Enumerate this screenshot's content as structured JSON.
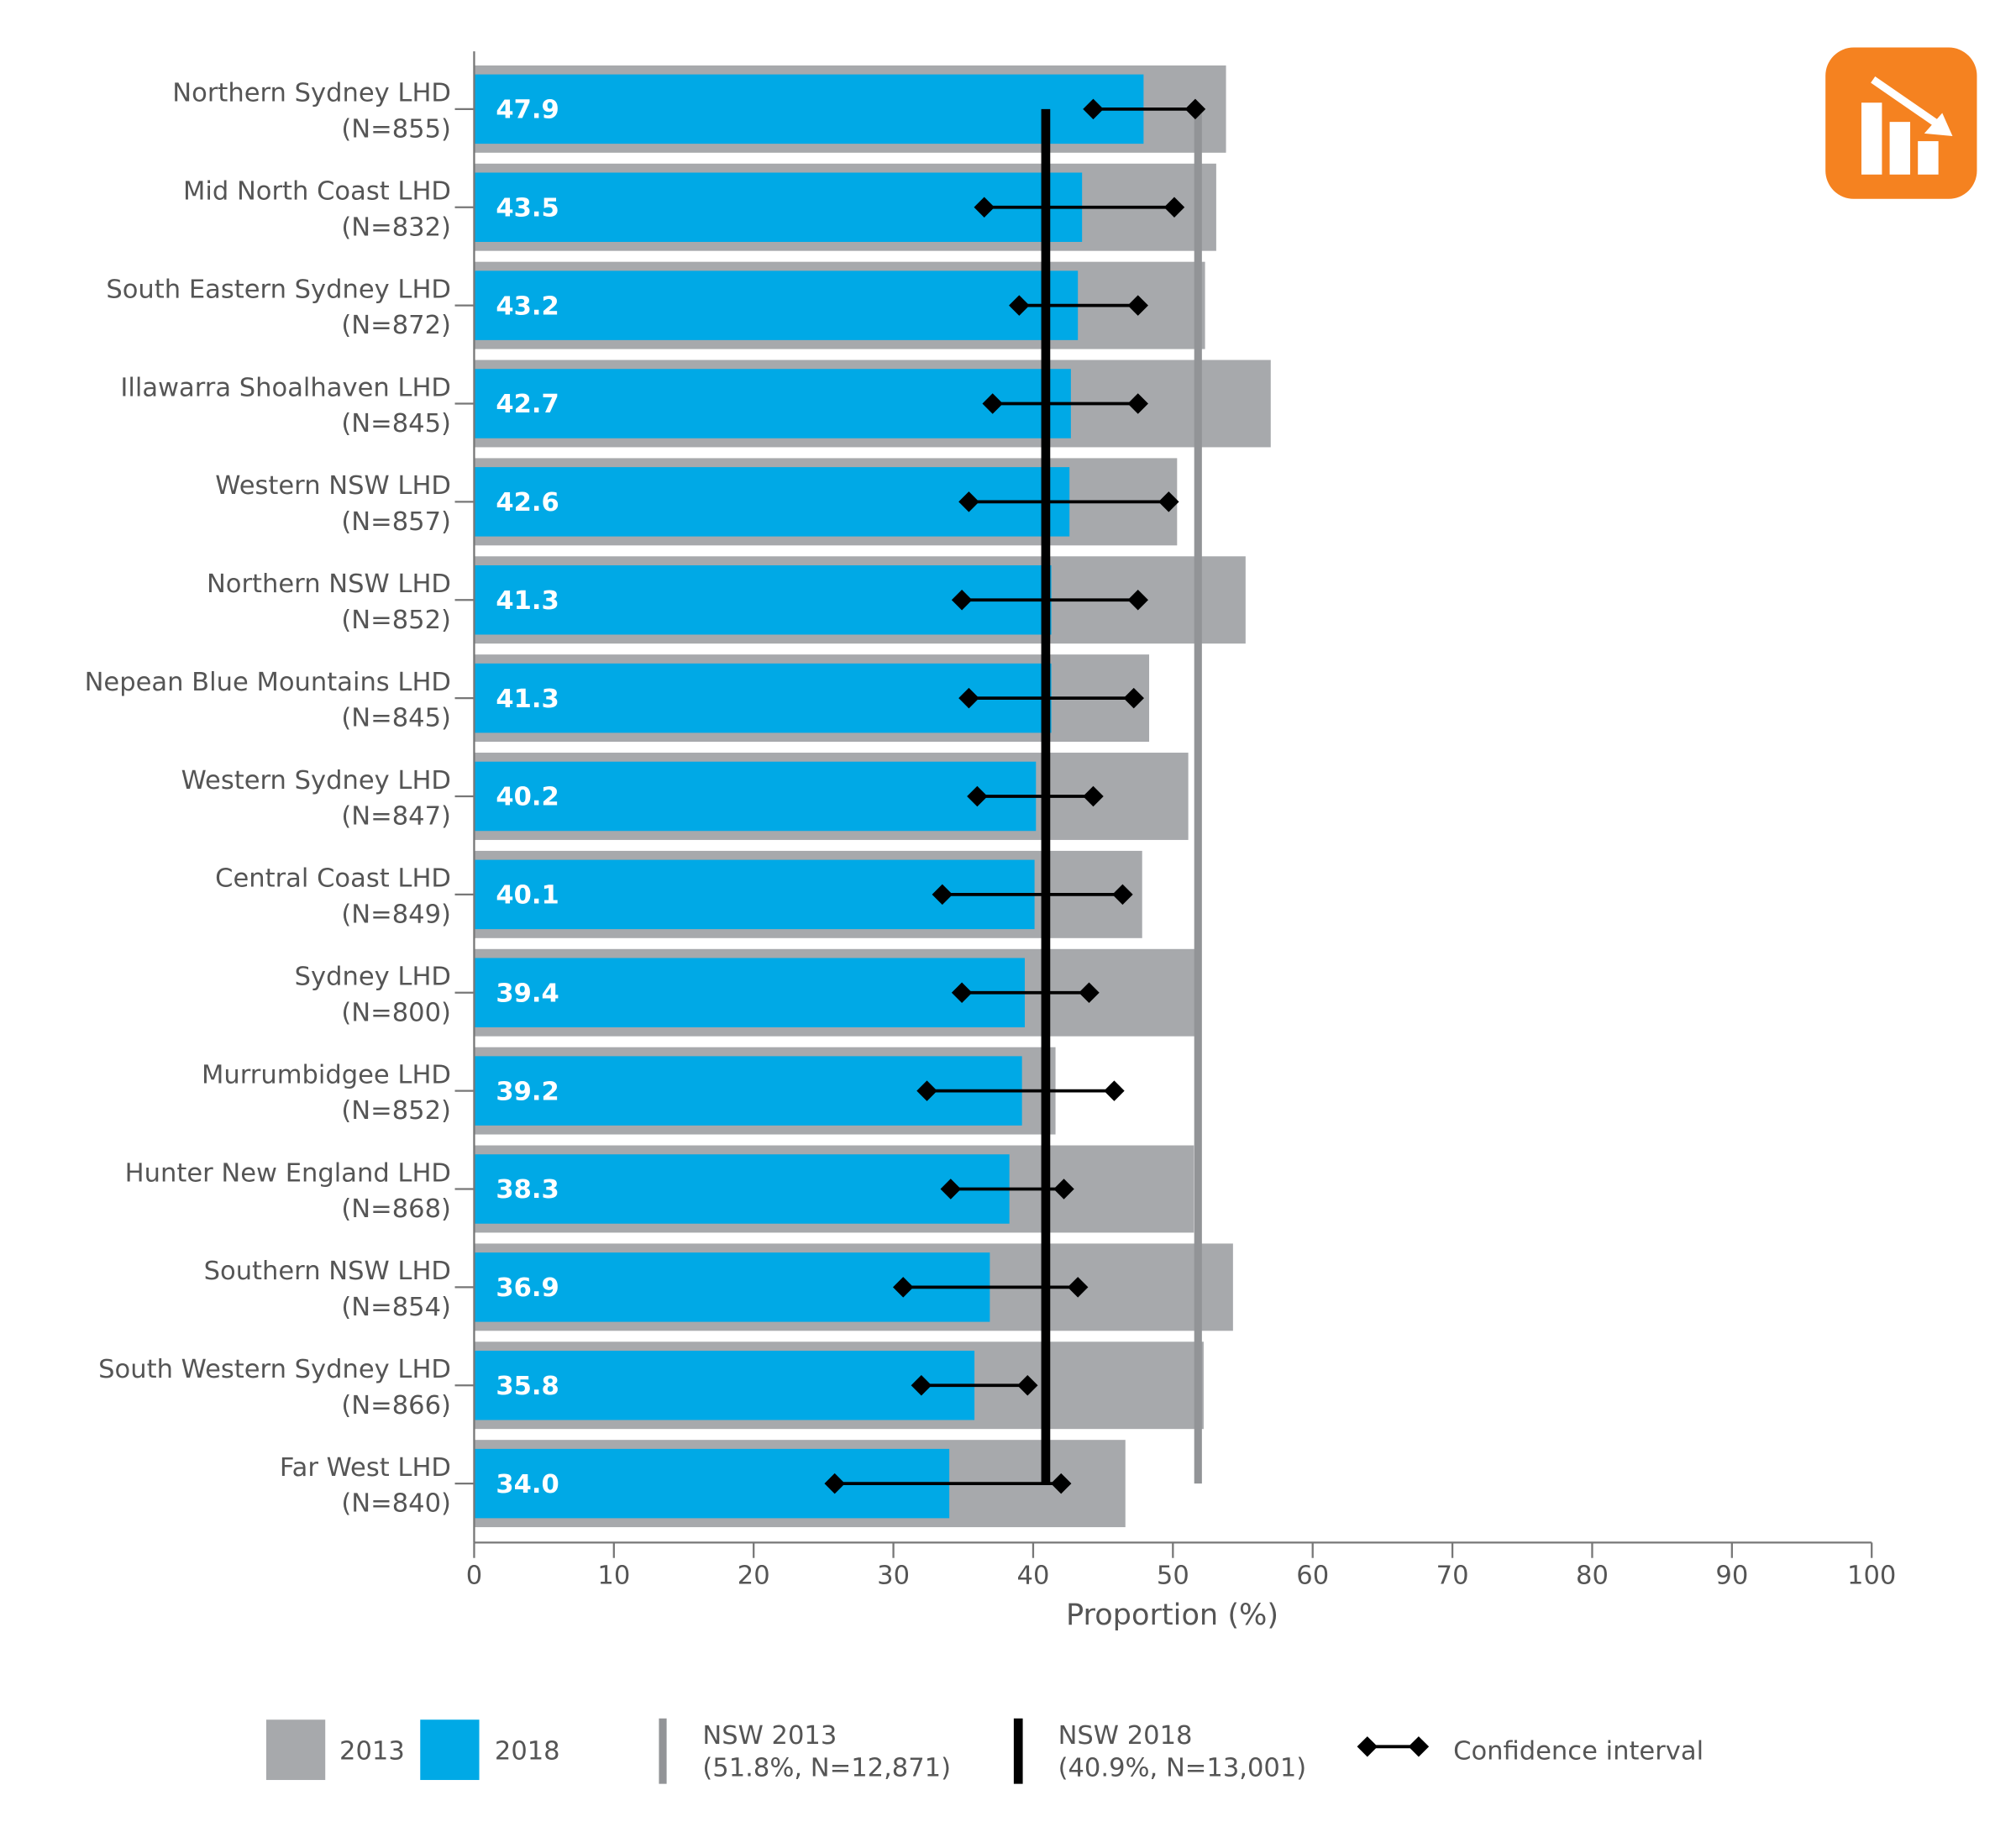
{
  "chart_data": {
    "type": "bar-horizontal",
    "categories": [
      "Northern Sydney LHD",
      "Mid North Coast LHD",
      "South Eastern Sydney LHD",
      "Illawarra Shoalhaven LHD",
      "Western NSW LHD",
      "Northern NSW LHD",
      "Nepean Blue Mountains LHD",
      "Western Sydney LHD",
      "Central Coast LHD",
      "Sydney LHD",
      "Murrumbidgee LHD",
      "Hunter New England LHD",
      "Southern NSW LHD",
      "South Western Sydney LHD",
      "Far West LHD"
    ],
    "sample_sizes": [
      "(N=855)",
      "(N=832)",
      "(N=872)",
      "(N=845)",
      "(N=857)",
      "(N=852)",
      "(N=845)",
      "(N=847)",
      "(N=849)",
      "(N=800)",
      "(N=852)",
      "(N=868)",
      "(N=854)",
      "(N=866)",
      "(N=840)"
    ],
    "series": [
      {
        "name": "2013",
        "color": "#a7a9ac",
        "values": [
          53.8,
          53.1,
          52.3,
          57.0,
          50.3,
          55.2,
          48.3,
          51.1,
          47.8,
          51.6,
          41.6,
          51.5,
          54.3,
          52.2,
          46.6
        ]
      },
      {
        "name": "2018",
        "color": "#00a9e6",
        "values": [
          47.9,
          43.5,
          43.2,
          42.7,
          42.6,
          41.3,
          41.3,
          40.2,
          40.1,
          39.4,
          39.2,
          38.3,
          36.9,
          35.8,
          34.0
        ],
        "value_labels": [
          "47.9",
          "43.5",
          "43.2",
          "42.7",
          "42.6",
          "41.3",
          "41.3",
          "40.2",
          "40.1",
          "39.4",
          "39.2",
          "38.3",
          "36.9",
          "35.8",
          "34.0"
        ]
      }
    ],
    "confidence_interval": {
      "name": "Confidence interval",
      "color": "#000000",
      "lower": [
        44.3,
        36.5,
        39.0,
        37.1,
        35.4,
        34.9,
        35.4,
        36.0,
        33.5,
        34.9,
        32.4,
        34.1,
        30.7,
        32.0,
        25.8
      ],
      "upper": [
        51.6,
        50.1,
        47.5,
        47.5,
        49.7,
        47.5,
        47.2,
        44.3,
        46.4,
        44.0,
        45.8,
        42.2,
        43.2,
        39.6,
        42.0
      ]
    },
    "reference_lines": [
      {
        "name": "NSW 2013",
        "label": "(51.8%, N=12,871)",
        "value": 51.8,
        "color": "#929497"
      },
      {
        "name": "NSW 2018",
        "label": "(40.9%, N=13,001)",
        "value": 40.9,
        "color": "#000000"
      }
    ],
    "x_label": "Proportion (%)",
    "xlim": [
      0,
      100
    ],
    "xticks": [
      0,
      10,
      20,
      30,
      40,
      50,
      60,
      70,
      80,
      90,
      100
    ],
    "legend": "bottom"
  }
}
